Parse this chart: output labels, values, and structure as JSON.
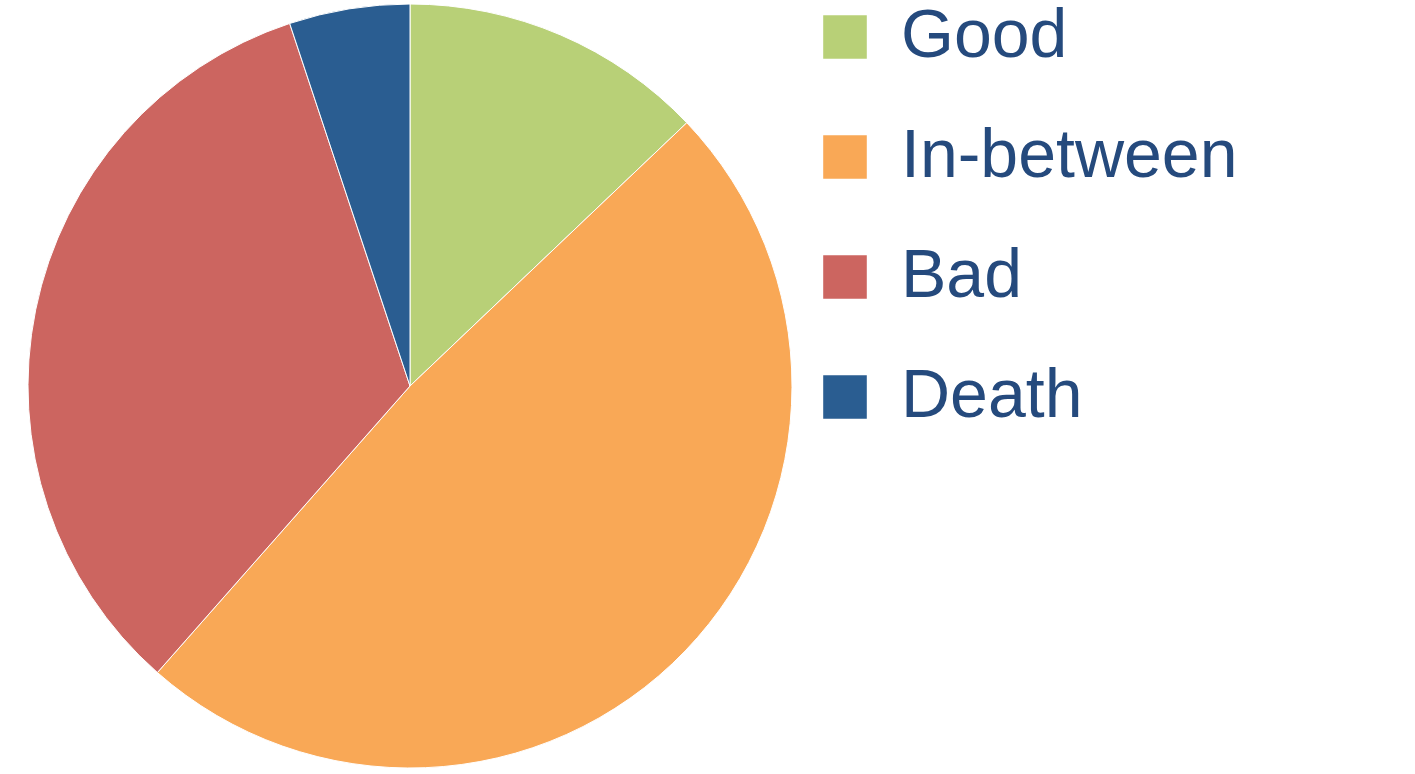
{
  "chart_data": {
    "type": "pie",
    "categories": [
      "Good",
      "In-between",
      "Bad",
      "Death"
    ],
    "values": [
      12.9,
      48.6,
      33.4,
      5.1
    ],
    "colors": [
      "#b8d077",
      "#f9a856",
      "#cc6560",
      "#2a5d91"
    ],
    "legend": "right"
  }
}
